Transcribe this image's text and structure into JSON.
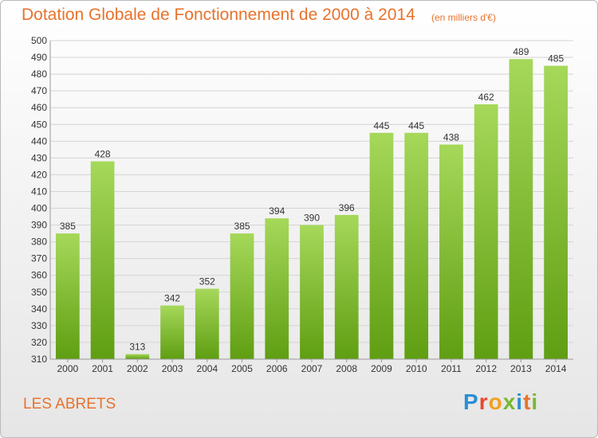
{
  "header": {
    "title": "Dotation Globale de Fonctionnement de 2000 à 2014",
    "subtitle": "(en milliers d'€)"
  },
  "footer": {
    "commune": "LES ABRETS",
    "logo_text": "Proxiti"
  },
  "colors": {
    "title": "#e8722c",
    "bar_top": "#a6d85a",
    "bar_bottom": "#5f9e12",
    "grid": "#d4d4d4"
  },
  "chart_data": {
    "type": "bar",
    "title": "Dotation Globale de Fonctionnement de 2000 à 2014",
    "subtitle": "(en milliers d'€)",
    "xlabel": "",
    "ylabel": "",
    "categories": [
      "2000",
      "2001",
      "2002",
      "2003",
      "2004",
      "2005",
      "2006",
      "2007",
      "2008",
      "2009",
      "2010",
      "2011",
      "2012",
      "2013",
      "2014"
    ],
    "values": [
      385,
      428,
      313,
      342,
      352,
      385,
      394,
      390,
      396,
      445,
      445,
      438,
      462,
      489,
      485
    ],
    "ylim": [
      310,
      500
    ],
    "yticks": [
      310,
      320,
      330,
      340,
      350,
      360,
      370,
      380,
      390,
      400,
      410,
      420,
      430,
      440,
      450,
      460,
      470,
      480,
      490,
      500
    ],
    "grid": true,
    "data_labels": true
  }
}
